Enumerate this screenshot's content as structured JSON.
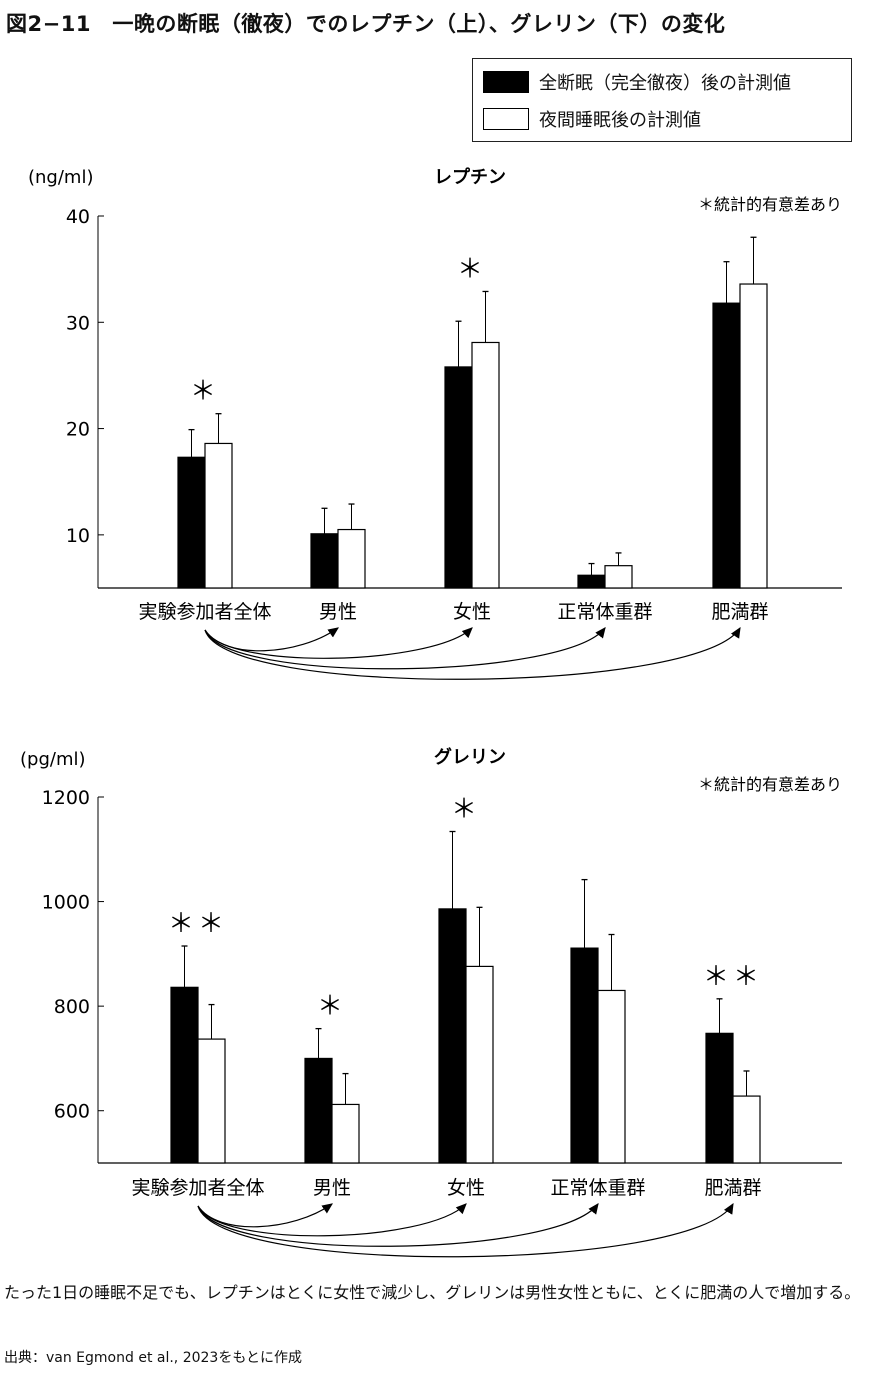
{
  "title": "図2−11　一晩の断眠（徹夜）でのレプチン（上）、グレリン（下）の変化",
  "legend": [
    {
      "label": "全断眠（完全徹夜）後の計測値",
      "color": "#000000"
    },
    {
      "label": "夜間睡眠後の計測値",
      "color": "#ffffff"
    }
  ],
  "caption": "たった1日の睡眠不足でも、レプチンはとくに女性で減少し、グレリンは男性女性ともに、とくに肥満の人で増加する。",
  "source": "出典：van Egmond et al., 2023をもとに作成",
  "chart_data": [
    {
      "type": "bar",
      "title": "レプチン",
      "unit": "(ng/ml)",
      "note": "＊統計的有意差あり",
      "ylim": [
        5,
        40
      ],
      "yticks": [
        10,
        20,
        30,
        40
      ],
      "categories": [
        "実験参加者全体",
        "男性",
        "女性",
        "正常体重群",
        "肥満群"
      ],
      "series": [
        {
          "name": "全断眠（完全徹夜）後の計測値",
          "values": [
            17.3,
            10.1,
            25.8,
            6.2,
            31.8
          ],
          "error_upper": [
            19.9,
            12.5,
            30.1,
            7.3,
            35.7
          ]
        },
        {
          "name": "夜間睡眠後の計測値",
          "values": [
            18.6,
            10.5,
            28.1,
            7.1,
            33.6
          ],
          "error_upper": [
            21.4,
            12.9,
            32.9,
            8.3,
            38.0
          ]
        }
      ],
      "significance": [
        "＊",
        "",
        "＊",
        "",
        ""
      ]
    },
    {
      "type": "bar",
      "title": "グレリン",
      "unit": "(pg/ml)",
      "note": "＊統計的有意差あり",
      "ylim": [
        500,
        1200
      ],
      "yticks": [
        600,
        800,
        1000,
        1200
      ],
      "categories": [
        "実験参加者全体",
        "男性",
        "女性",
        "正常体重群",
        "肥満群"
      ],
      "series": [
        {
          "name": "全断眠（完全徹夜）後の計測値",
          "values": [
            836,
            700,
            986,
            911,
            748
          ],
          "error_upper": [
            915,
            757,
            1134,
            1042,
            814
          ]
        },
        {
          "name": "夜間睡眠後の計測値",
          "values": [
            737,
            612,
            876,
            830,
            628
          ],
          "error_upper": [
            803,
            671,
            989,
            937,
            676
          ]
        }
      ],
      "significance": [
        "＊＊",
        "＊",
        "＊",
        "",
        "＊＊"
      ]
    }
  ]
}
